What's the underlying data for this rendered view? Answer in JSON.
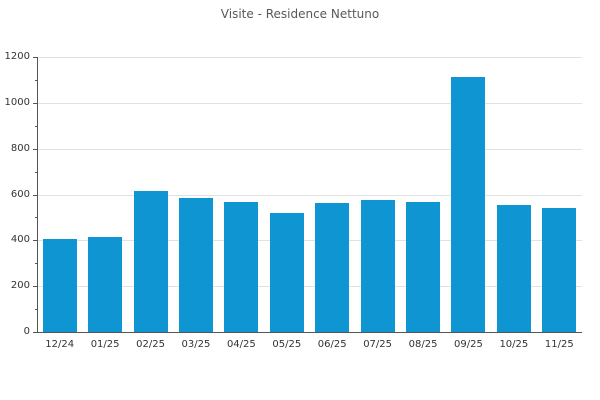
{
  "chart_data": {
    "type": "bar",
    "title": "Visite - Residence Nettuno",
    "categories": [
      "12/24",
      "01/25",
      "02/25",
      "03/25",
      "04/25",
      "05/25",
      "06/25",
      "07/25",
      "08/25",
      "09/25",
      "10/25",
      "11/25"
    ],
    "values": [
      405,
      415,
      617,
      585,
      566,
      518,
      562,
      576,
      566,
      1113,
      555,
      540
    ],
    "xlabel": "",
    "ylabel": "",
    "ylim": [
      0,
      1200
    ],
    "yticks": [
      0,
      200,
      400,
      600,
      800,
      1000,
      1200
    ],
    "minor_ytick_step": 100,
    "grid": "horizontal-major",
    "legend": "none",
    "bar_width_fraction": 0.75,
    "colors": {
      "bar": "#1095d3",
      "grid": "#e2e2e2",
      "spine": "#555555",
      "tick_label": "#333333",
      "title": "#595959"
    }
  }
}
